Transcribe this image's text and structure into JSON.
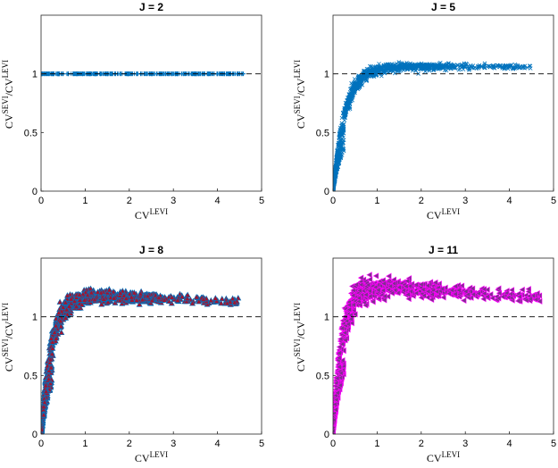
{
  "figure": {
    "colors": {
      "series_blue": "#0072BD",
      "series_red": "#A2142F",
      "series_purple": "#7E2F8E",
      "series_magenta": "#FF00FF",
      "axis": "#262626",
      "reference_line": "#000000"
    }
  },
  "chart_data": [
    {
      "type": "scatter",
      "title": "J = 2",
      "xlabel": {
        "base": "CV",
        "sup": "LEVI"
      },
      "ylabel": {
        "num_base": "CV",
        "num_sup": "SEVI",
        "den_base": "/CV",
        "den_sup": "LEVI"
      },
      "xlim": [
        0,
        5
      ],
      "ylim": [
        0,
        1.5
      ],
      "xticks": [
        "0",
        "1",
        "2",
        "3",
        "4",
        "5"
      ],
      "yticks": [
        "0",
        "0.5",
        "1"
      ],
      "ytick_values": [
        0,
        0.5,
        1
      ],
      "reference_y": 1,
      "marker": "plus",
      "series": [
        {
          "name": "J = 2",
          "color": "#0072BD",
          "pattern": {
            "x_range": [
              0,
              4.6
            ],
            "y_center": 1.0,
            "y_spread": 0.0,
            "count": 380
          }
        }
      ]
    },
    {
      "type": "scatter",
      "title": "J = 5",
      "xlabel": {
        "base": "CV",
        "sup": "LEVI"
      },
      "ylabel": {
        "num_base": "CV",
        "num_sup": "SEVI",
        "den_base": "/CV",
        "den_sup": "LEVI"
      },
      "xlim": [
        0,
        5
      ],
      "ylim": [
        0,
        1.5
      ],
      "xticks": [
        "0",
        "1",
        "2",
        "3",
        "4",
        "5"
      ],
      "yticks": [
        "0",
        "0.5",
        "1"
      ],
      "ytick_values": [
        0,
        0.5,
        1
      ],
      "reference_y": 1,
      "marker": "x",
      "series": [
        {
          "name": "J = 5",
          "color": "#0072BD",
          "pattern": {
            "x_max": 4.5,
            "plateau": 1.06,
            "rise_rate": 3.6,
            "spread": 0.06,
            "count": 1400
          }
        }
      ]
    },
    {
      "type": "scatter",
      "title": "J = 8",
      "xlabel": {
        "base": "CV",
        "sup": "LEVI"
      },
      "ylabel": {
        "num_base": "CV",
        "num_sup": "SEVI",
        "den_base": "/CV",
        "den_sup": "LEVI"
      },
      "xlim": [
        0,
        5
      ],
      "ylim": [
        0,
        1.5
      ],
      "xticks": [
        "0",
        "1",
        "2",
        "3",
        "4",
        "5"
      ],
      "yticks": [
        "0",
        "0.5",
        "1"
      ],
      "ytick_values": [
        0,
        0.5,
        1
      ],
      "reference_y": 1,
      "marker": "triangle-up",
      "series": [
        {
          "name": "J = 8",
          "color": "#0072BD",
          "stroke": "#A2142F",
          "pattern": {
            "x_max": 4.5,
            "plateau": 1.18,
            "rise_rate": 4.2,
            "spread": 0.09,
            "count": 1100
          }
        }
      ]
    },
    {
      "type": "scatter",
      "title": "J = 11",
      "xlabel": {
        "base": "CV",
        "sup": "LEVI"
      },
      "ylabel": {
        "num_base": "CV",
        "num_sup": "SEVI",
        "den_base": "/CV",
        "den_sup": "LEVI"
      },
      "xlim": [
        0,
        5
      ],
      "ylim": [
        0,
        1.5
      ],
      "xticks": [
        "0",
        "1",
        "2",
        "3",
        "4",
        "5"
      ],
      "yticks": [
        "0",
        "0.5",
        "1"
      ],
      "ytick_values": [
        0,
        0.5,
        1
      ],
      "reference_y": 1,
      "marker": "triangle-left",
      "series": [
        {
          "name": "J = 11",
          "color": "#7E2F8E",
          "stroke": "#FF00FF",
          "pattern": {
            "x_max": 4.7,
            "plateau": 1.25,
            "rise_rate": 5.0,
            "spread": 0.12,
            "count": 1100
          }
        }
      ]
    }
  ]
}
